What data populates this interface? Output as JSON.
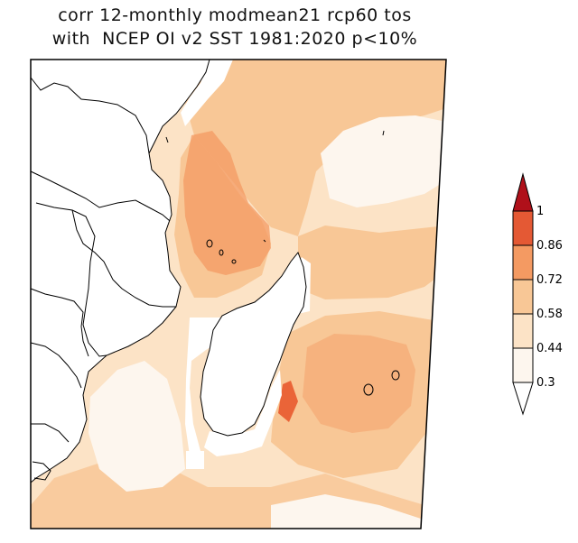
{
  "title": {
    "line1": "corr 12-monthly modmean21 rcp60 tos",
    "line2": "with  NCEP OI v2 SST 1981:2020 p<10%"
  },
  "colorbar": {
    "labels": [
      "1",
      "0.86",
      "0.72",
      "0.58",
      "0.44",
      "0.3"
    ],
    "colors": [
      "#c8141c",
      "#ea6438",
      "#f49a62",
      "#f8c796",
      "#fce3c6",
      "#fdf6ee"
    ]
  },
  "map": {
    "colors": {
      "land": "#ffffff",
      "missing": "#ffffff",
      "c044": "#fce3c6",
      "c058": "#f8c796",
      "c072": "#f49a62",
      "c086": "#ea6438",
      "low": "#fdf6ee"
    }
  }
}
